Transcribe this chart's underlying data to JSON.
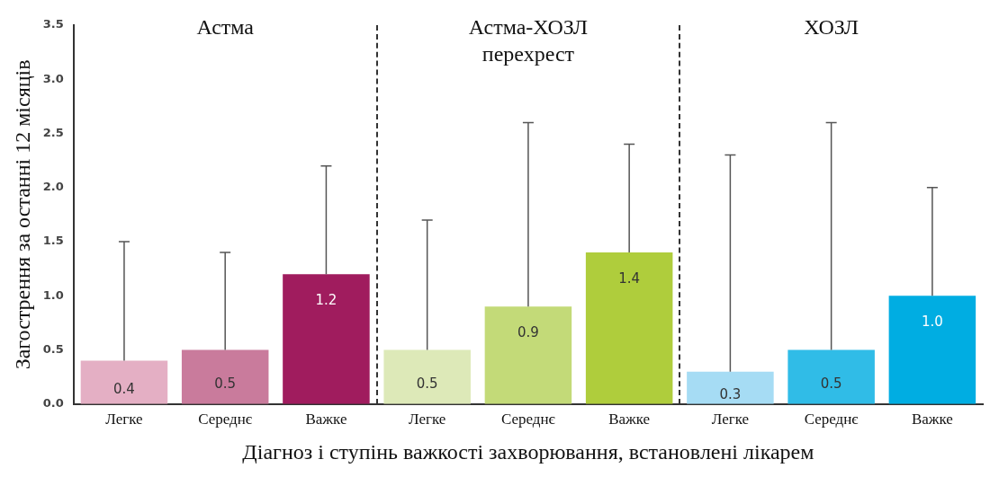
{
  "chart_data": {
    "type": "bar",
    "xlabel": "Діагноз і ступінь важкості захворювання, встановлені лікарем",
    "ylabel": "Загострення за останні 12 місяців",
    "categories": [
      "Легке",
      "Середнє",
      "Важке",
      "Легке",
      "Середнє",
      "Важке",
      "Легке",
      "Середнє",
      "Важке"
    ],
    "values": [
      0.4,
      0.5,
      1.2,
      0.5,
      0.9,
      1.4,
      0.3,
      0.5,
      1.0
    ],
    "colors": [
      "#e4afc4",
      "#c97b9c",
      "#a01c5e",
      "#dde9b8",
      "#c3da78",
      "#afcd3c",
      "#a6dcf4",
      "#30bce7",
      "#00ade2"
    ],
    "errors": [
      [
        0.4,
        1.5
      ],
      [
        0.5,
        1.4
      ],
      [
        1.2,
        2.2
      ],
      [
        0.5,
        1.7
      ],
      [
        0.9,
        2.6
      ],
      [
        1.4,
        2.4
      ],
      [
        0.3,
        2.3
      ],
      [
        0.5,
        2.6
      ],
      [
        1.0,
        2.0
      ]
    ],
    "value_labels": [
      "0.4",
      "0.5",
      "1.2",
      "0.5",
      "0.9",
      "1.4",
      "0.3",
      "0.5",
      "1.0"
    ],
    "annotations": [
      "Астма",
      "Астма-ХОЗЛ перехрест",
      "ХОЗЛ"
    ],
    "ylim": [
      0,
      3.5
    ],
    "yticks": [
      {
        "value": 0,
        "label": "0.0"
      },
      0.5,
      {
        "value": 1,
        "label": "1.0"
      },
      1.5,
      {
        "value": 2,
        "label": "2.0"
      },
      2.5,
      {
        "value": 3,
        "label": "3.0"
      },
      3.5
    ],
    "grid": false,
    "legend": false
  }
}
